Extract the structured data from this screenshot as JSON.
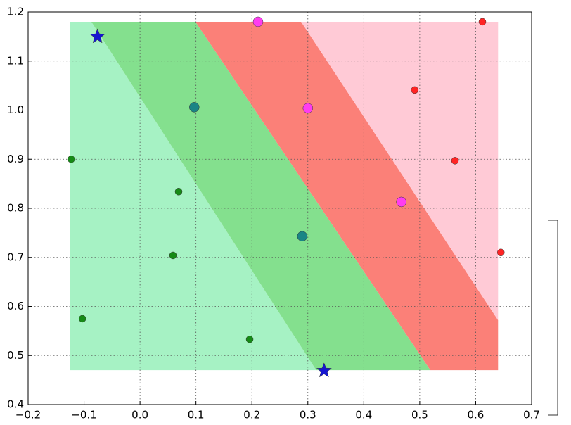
{
  "chart_data": {
    "type": "scatter",
    "xlim": [
      -0.2,
      0.7
    ],
    "xticks": [
      {
        "value": -0.2,
        "label": "−0.2"
      },
      {
        "value": -0.1,
        "label": "−0.1"
      },
      {
        "value": 0,
        "label": "0.0"
      },
      0.1,
      0.2,
      0.3,
      0.4,
      0.5,
      0.6,
      0.7
    ],
    "ylim": [
      0.4,
      1.2
    ],
    "yticks": [
      0.4,
      0.5,
      0.6,
      0.7,
      0.8,
      0.9,
      {
        "value": 1,
        "label": "1.0"
      },
      1.1,
      1.2
    ],
    "grid": true,
    "regions": [
      {
        "color": "#a6f2c4",
        "x": [
          -0.125,
          -0.087,
          0.315,
          -0.125
        ],
        "y": [
          1.18,
          1.18,
          0.47,
          0.47
        ]
      },
      {
        "color": "#84e08e",
        "x": [
          -0.087,
          0.099,
          0.519,
          0.315
        ],
        "y": [
          1.18,
          1.18,
          0.47,
          0.47
        ]
      },
      {
        "color": "#fb8078",
        "x": [
          0.099,
          0.288,
          0.64,
          0.64,
          0.519
        ],
        "y": [
          1.18,
          1.18,
          0.572,
          0.47,
          0.47
        ]
      },
      {
        "color": "#ffcad6",
        "x": [
          0.288,
          0.64,
          0.64
        ],
        "y": [
          1.18,
          1.18,
          0.572
        ]
      }
    ],
    "series": [
      {
        "color": "#168a16",
        "marker": "circle",
        "size": 5,
        "x": [
          -0.123,
          0.069,
          0.059,
          -0.103,
          0.196
        ],
        "values": [
          0.9,
          0.834,
          0.704,
          0.575,
          0.533
        ]
      },
      {
        "color": "#1a8585",
        "marker": "circle",
        "size": 7,
        "x": [
          0.097,
          0.29
        ],
        "values": [
          1.006,
          0.743
        ]
      },
      {
        "color": "#ff3cf0",
        "marker": "circle",
        "size": 7,
        "x": [
          0.211,
          0.3,
          0.467
        ],
        "values": [
          1.18,
          1.004,
          0.813
        ]
      },
      {
        "color": "#ff2424",
        "marker": "circle",
        "size": 5,
        "x": [
          0.612,
          0.491,
          0.563,
          0.645
        ],
        "values": [
          1.18,
          1.041,
          0.897,
          0.71
        ]
      },
      {
        "color": "#1515d0",
        "marker": "star",
        "size": 11,
        "x": [
          -0.076,
          0.329
        ],
        "values": [
          1.15,
          0.469
        ]
      }
    ]
  }
}
